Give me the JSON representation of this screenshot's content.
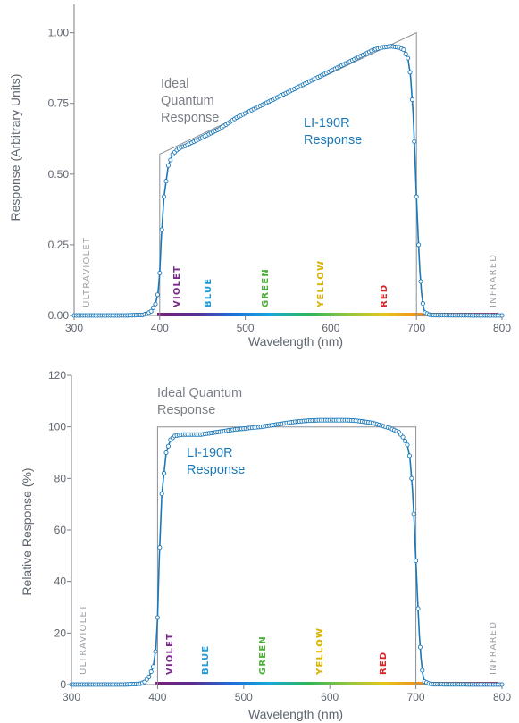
{
  "spectrum_colors": [
    "#7b1e7a",
    "#5a2d91",
    "#1e6fd9",
    "#19a7d8",
    "#2fb45a",
    "#8cc63f",
    "#e6c51a",
    "#f08c1e",
    "#e23b2a",
    "#c8232c"
  ],
  "chart_data": [
    {
      "type": "line",
      "xlabel": "Wavelength (nm)",
      "ylabel": "Response (Arbitrary Units)",
      "xlim": [
        300,
        800
      ],
      "ylim": [
        0,
        1.1
      ],
      "xticks": [
        300,
        400,
        500,
        600,
        700,
        800
      ],
      "yticks": [
        0,
        0.25,
        0.5,
        0.75,
        1.0
      ],
      "xtick_labels": [
        "300",
        "400",
        "500",
        "600",
        "700",
        "800"
      ],
      "ytick_labels": [
        "0.00",
        "0.25",
        "0.50",
        "0.75",
        "1.00"
      ],
      "grid": false,
      "annotations": {
        "ideal": [
          "Ideal",
          "Quantum",
          "Response"
        ],
        "sensor": [
          "LI-190R",
          "Response"
        ]
      },
      "band_labels": {
        "ultraviolet": "ULTRAVIOLET",
        "violet": "VIOLET",
        "blue": "BLUE",
        "green": "GREEN",
        "yellow": "YELLOW",
        "red": "RED",
        "infrared": "INFRARED"
      },
      "series": [
        {
          "x": [
            300,
            400,
            400,
            700,
            700,
            800
          ],
          "y": [
            0,
            0,
            0.571,
            1.0,
            0,
            0
          ]
        },
        {
          "x": [
            300,
            360,
            380,
            385,
            390,
            395,
            398,
            400,
            402,
            405,
            410,
            415,
            420,
            425,
            430,
            440,
            450,
            460,
            470,
            480,
            490,
            500,
            510,
            520,
            530,
            540,
            550,
            560,
            570,
            580,
            590,
            600,
            610,
            620,
            630,
            640,
            650,
            660,
            670,
            680,
            685,
            690,
            693,
            696,
            698,
            700,
            702,
            704,
            706,
            708,
            710,
            715,
            720,
            800
          ],
          "y": [
            0,
            0,
            0.002,
            0.006,
            0.015,
            0.04,
            0.08,
            0.15,
            0.28,
            0.42,
            0.53,
            0.57,
            0.585,
            0.595,
            0.6,
            0.615,
            0.63,
            0.645,
            0.66,
            0.68,
            0.7,
            0.715,
            0.73,
            0.745,
            0.76,
            0.775,
            0.79,
            0.805,
            0.82,
            0.835,
            0.85,
            0.865,
            0.88,
            0.895,
            0.91,
            0.925,
            0.94,
            0.948,
            0.952,
            0.948,
            0.94,
            0.91,
            0.85,
            0.72,
            0.58,
            0.42,
            0.28,
            0.16,
            0.08,
            0.03,
            0.01,
            0.003,
            0.001,
            0
          ]
        }
      ]
    },
    {
      "type": "line",
      "xlabel": "Wavelength (nm)",
      "ylabel": "Relative Response (%)",
      "xlim": [
        300,
        800
      ],
      "ylim": [
        0,
        120
      ],
      "xticks": [
        300,
        400,
        500,
        600,
        700,
        800
      ],
      "yticks": [
        0,
        20,
        40,
        60,
        80,
        100,
        120
      ],
      "xtick_labels": [
        "300",
        "400",
        "500",
        "600",
        "700",
        "800"
      ],
      "ytick_labels": [
        "0",
        "20",
        "40",
        "60",
        "80",
        "100",
        "120"
      ],
      "grid": false,
      "annotations": {
        "ideal": [
          "Ideal Quantum",
          "Response"
        ],
        "sensor": [
          "LI-190R",
          "Response"
        ]
      },
      "band_labels": {
        "ultraviolet": "ULTRAVIOLET",
        "violet": "VIOLET",
        "blue": "BLUE",
        "green": "GREEN",
        "yellow": "YELLOW",
        "red": "RED",
        "infrared": "INFRARED"
      },
      "series": [
        {
          "x": [
            300,
            400,
            400,
            700,
            700,
            800
          ],
          "y": [
            0,
            0,
            100,
            100,
            0,
            0
          ]
        },
        {
          "x": [
            300,
            360,
            380,
            385,
            390,
            395,
            398,
            400,
            402,
            405,
            410,
            415,
            420,
            425,
            430,
            440,
            450,
            460,
            470,
            480,
            490,
            500,
            510,
            520,
            530,
            540,
            550,
            560,
            570,
            580,
            590,
            600,
            610,
            620,
            630,
            640,
            650,
            660,
            670,
            680,
            685,
            690,
            693,
            696,
            698,
            700,
            702,
            704,
            706,
            708,
            710,
            715,
            720,
            800
          ],
          "y": [
            0,
            0,
            0.3,
            1,
            3,
            7,
            14,
            26,
            49,
            74,
            90,
            95,
            96.5,
            96.8,
            97,
            97,
            97,
            97.5,
            98,
            98.5,
            99,
            99.3,
            99.7,
            100,
            100.5,
            101,
            101.5,
            102,
            102.3,
            102.5,
            102.6,
            102.6,
            102.6,
            102.6,
            102.4,
            102,
            101.5,
            100.5,
            99.5,
            98,
            96,
            93,
            88,
            76,
            63,
            48,
            33,
            19,
            10,
            4,
            1.2,
            0.4,
            0.1,
            0
          ]
        }
      ]
    }
  ]
}
